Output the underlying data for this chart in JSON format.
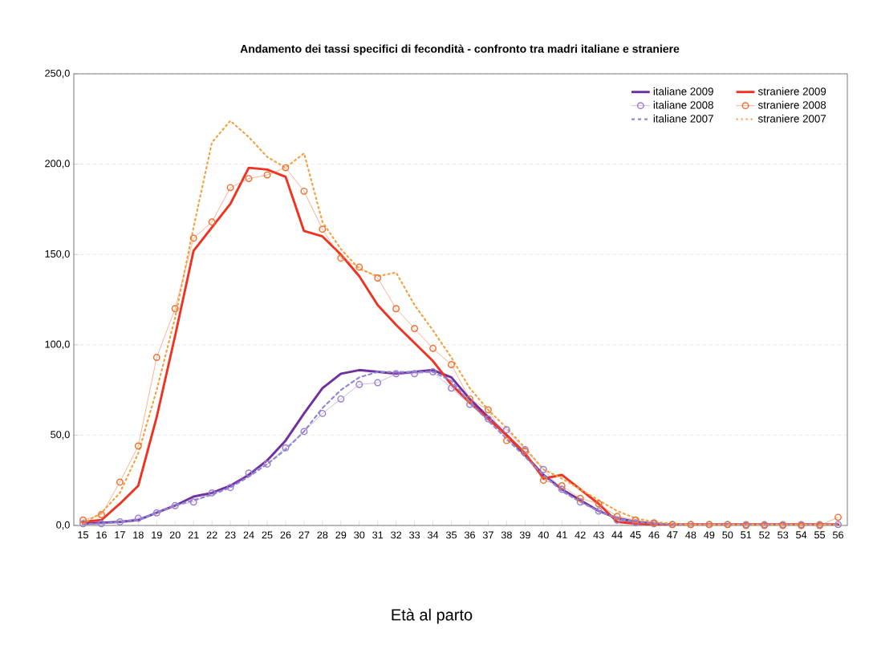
{
  "chart_data": {
    "type": "line",
    "title": "Andamento dei tassi specifici di fecondità - confronto tra madri italiane e straniere",
    "xlabel": "Età al parto",
    "categories": [
      "15",
      "16",
      "17",
      "18",
      "19",
      "20",
      "21",
      "22",
      "23",
      "24",
      "25",
      "26",
      "27",
      "28",
      "29",
      "30",
      "31",
      "32",
      "33",
      "34",
      "35",
      "36",
      "37",
      "38",
      "39",
      "40",
      "41",
      "42",
      "43",
      "44",
      "45",
      "46",
      "47",
      "48",
      "49",
      "50",
      "51",
      "52",
      "53",
      "54",
      "55",
      "56"
    ],
    "ylim": [
      0,
      250
    ],
    "yticks": [
      {
        "value": 0,
        "label": "0,0"
      },
      {
        "value": 50,
        "label": "50,0"
      },
      {
        "value": 100,
        "label": "100,0"
      },
      {
        "value": 150,
        "label": "150,0"
      },
      {
        "value": 200,
        "label": "200,0"
      },
      {
        "value": 250,
        "label": "250,0"
      }
    ],
    "grid": "y",
    "legend": "top right",
    "series": [
      {
        "name": "italiane 2009",
        "color": "#7030a0",
        "line_style": "solid",
        "marker": "none",
        "values": [
          1,
          1.5,
          2,
          3,
          7,
          11,
          16,
          18,
          22,
          28,
          36,
          47,
          62,
          76,
          84,
          86,
          85,
          84,
          85,
          86,
          82,
          70,
          60,
          50,
          39,
          28,
          20,
          14,
          8,
          4,
          2,
          1,
          0.5,
          0.5,
          0.5,
          0.5,
          0.5,
          0.5,
          0.5,
          0.5,
          0.5,
          0.5
        ]
      },
      {
        "name": "straniere 2009",
        "color": "#ee3322",
        "line_style": "solid",
        "marker": "none",
        "values": [
          2,
          3,
          12,
          22,
          60,
          105,
          152,
          165,
          178,
          198,
          197,
          193,
          163,
          160,
          150,
          138,
          122,
          111,
          101,
          91,
          78,
          68,
          59,
          50,
          40,
          26,
          28,
          20,
          12,
          2,
          1,
          0.5,
          0.5,
          0.5,
          0.5,
          0.5,
          0.5,
          0.5,
          0.5,
          0.5,
          0.5,
          0.5
        ]
      },
      {
        "name": "italiane 2008",
        "color": "#9b7fd0",
        "line_style": "solid",
        "marker": "circle",
        "values": [
          1,
          1,
          2,
          4,
          7,
          11,
          13,
          18,
          21,
          29,
          34,
          43,
          52,
          62,
          70,
          78,
          79,
          84,
          84,
          85,
          76,
          67,
          59,
          53,
          42,
          31,
          20,
          13,
          8,
          3,
          1.5,
          1,
          0.5,
          0.5,
          0.5,
          0.5,
          0.5,
          0.5,
          0.5,
          0.5,
          0.5,
          0.5
        ]
      },
      {
        "name": "straniere 2008",
        "color": "#f07030",
        "line_style": "solid",
        "marker": "circle",
        "values": [
          3,
          6,
          24,
          44,
          93,
          120,
          159,
          168,
          187,
          192,
          194,
          198,
          185,
          164,
          148,
          143,
          137,
          120,
          109,
          98,
          89,
          70,
          64,
          47,
          41,
          25,
          22,
          15,
          12,
          5,
          3,
          1.5,
          0.5,
          0.5,
          0.5,
          0.5,
          0,
          0,
          0,
          0,
          0,
          4.5
        ]
      },
      {
        "name": "italiane 2007",
        "color": "#8f86d6",
        "line_style": "dashed",
        "marker": "none",
        "values": [
          1,
          1,
          2,
          3,
          7,
          11,
          14,
          17,
          21,
          27,
          34,
          42,
          52,
          65,
          75,
          82,
          85,
          85,
          85,
          85,
          80,
          68,
          58,
          48,
          38,
          28,
          19,
          13,
          8,
          4,
          2,
          1,
          0.5,
          0.5,
          0.5,
          0.5,
          0.5,
          0.5,
          0.5,
          0.5,
          0.5,
          0.5
        ]
      },
      {
        "name": "straniere 2007",
        "color": "#f5a040",
        "line_style": "dotted",
        "marker": "none",
        "values": [
          1,
          7,
          18,
          40,
          75,
          115,
          165,
          212,
          224,
          215,
          204,
          198,
          206,
          168,
          153,
          142,
          138,
          140,
          122,
          108,
          93,
          76,
          64,
          54,
          43,
          31,
          26,
          20,
          14,
          8,
          4,
          2,
          1,
          0.5,
          0.5,
          0.5,
          0.5,
          0.5,
          0.5,
          0.5,
          0.5,
          0.5
        ]
      }
    ]
  }
}
